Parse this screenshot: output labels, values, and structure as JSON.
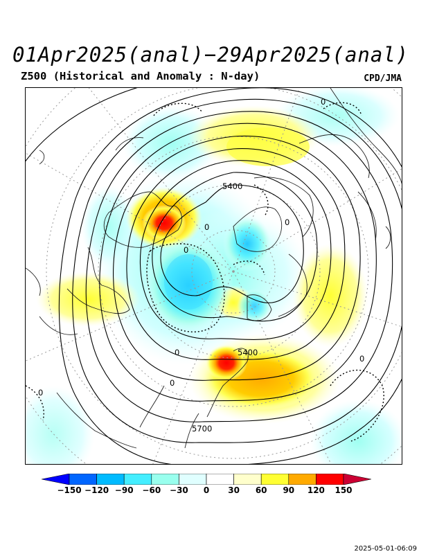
{
  "header": {
    "title": "01Apr2025(anal)−29Apr2025(anal)",
    "subtitle": "Z500 (Historical and Anomaly : N-day)",
    "credit": "CPD/JMA"
  },
  "map": {
    "contour_labels": [
      "5400",
      "5400",
      "5700"
    ],
    "anomaly_zero_labels": [
      "0",
      "0",
      "0",
      "0",
      "0",
      "0",
      "0",
      "0"
    ]
  },
  "colorbar": {
    "ticks": [
      "−150",
      "−120",
      "−90",
      "−60",
      "−30",
      "0",
      "30",
      "60",
      "90",
      "120",
      "150"
    ],
    "colors": [
      "#0000ff",
      "#0066ff",
      "#00bbff",
      "#44eeff",
      "#99ffee",
      "#e0ffff",
      "#ffffff",
      "#ffffcc",
      "#ffff33",
      "#ffaa00",
      "#ff0000",
      "#cc0033"
    ]
  },
  "footer": {
    "timestamp": "2025-05-01-06:09"
  }
}
